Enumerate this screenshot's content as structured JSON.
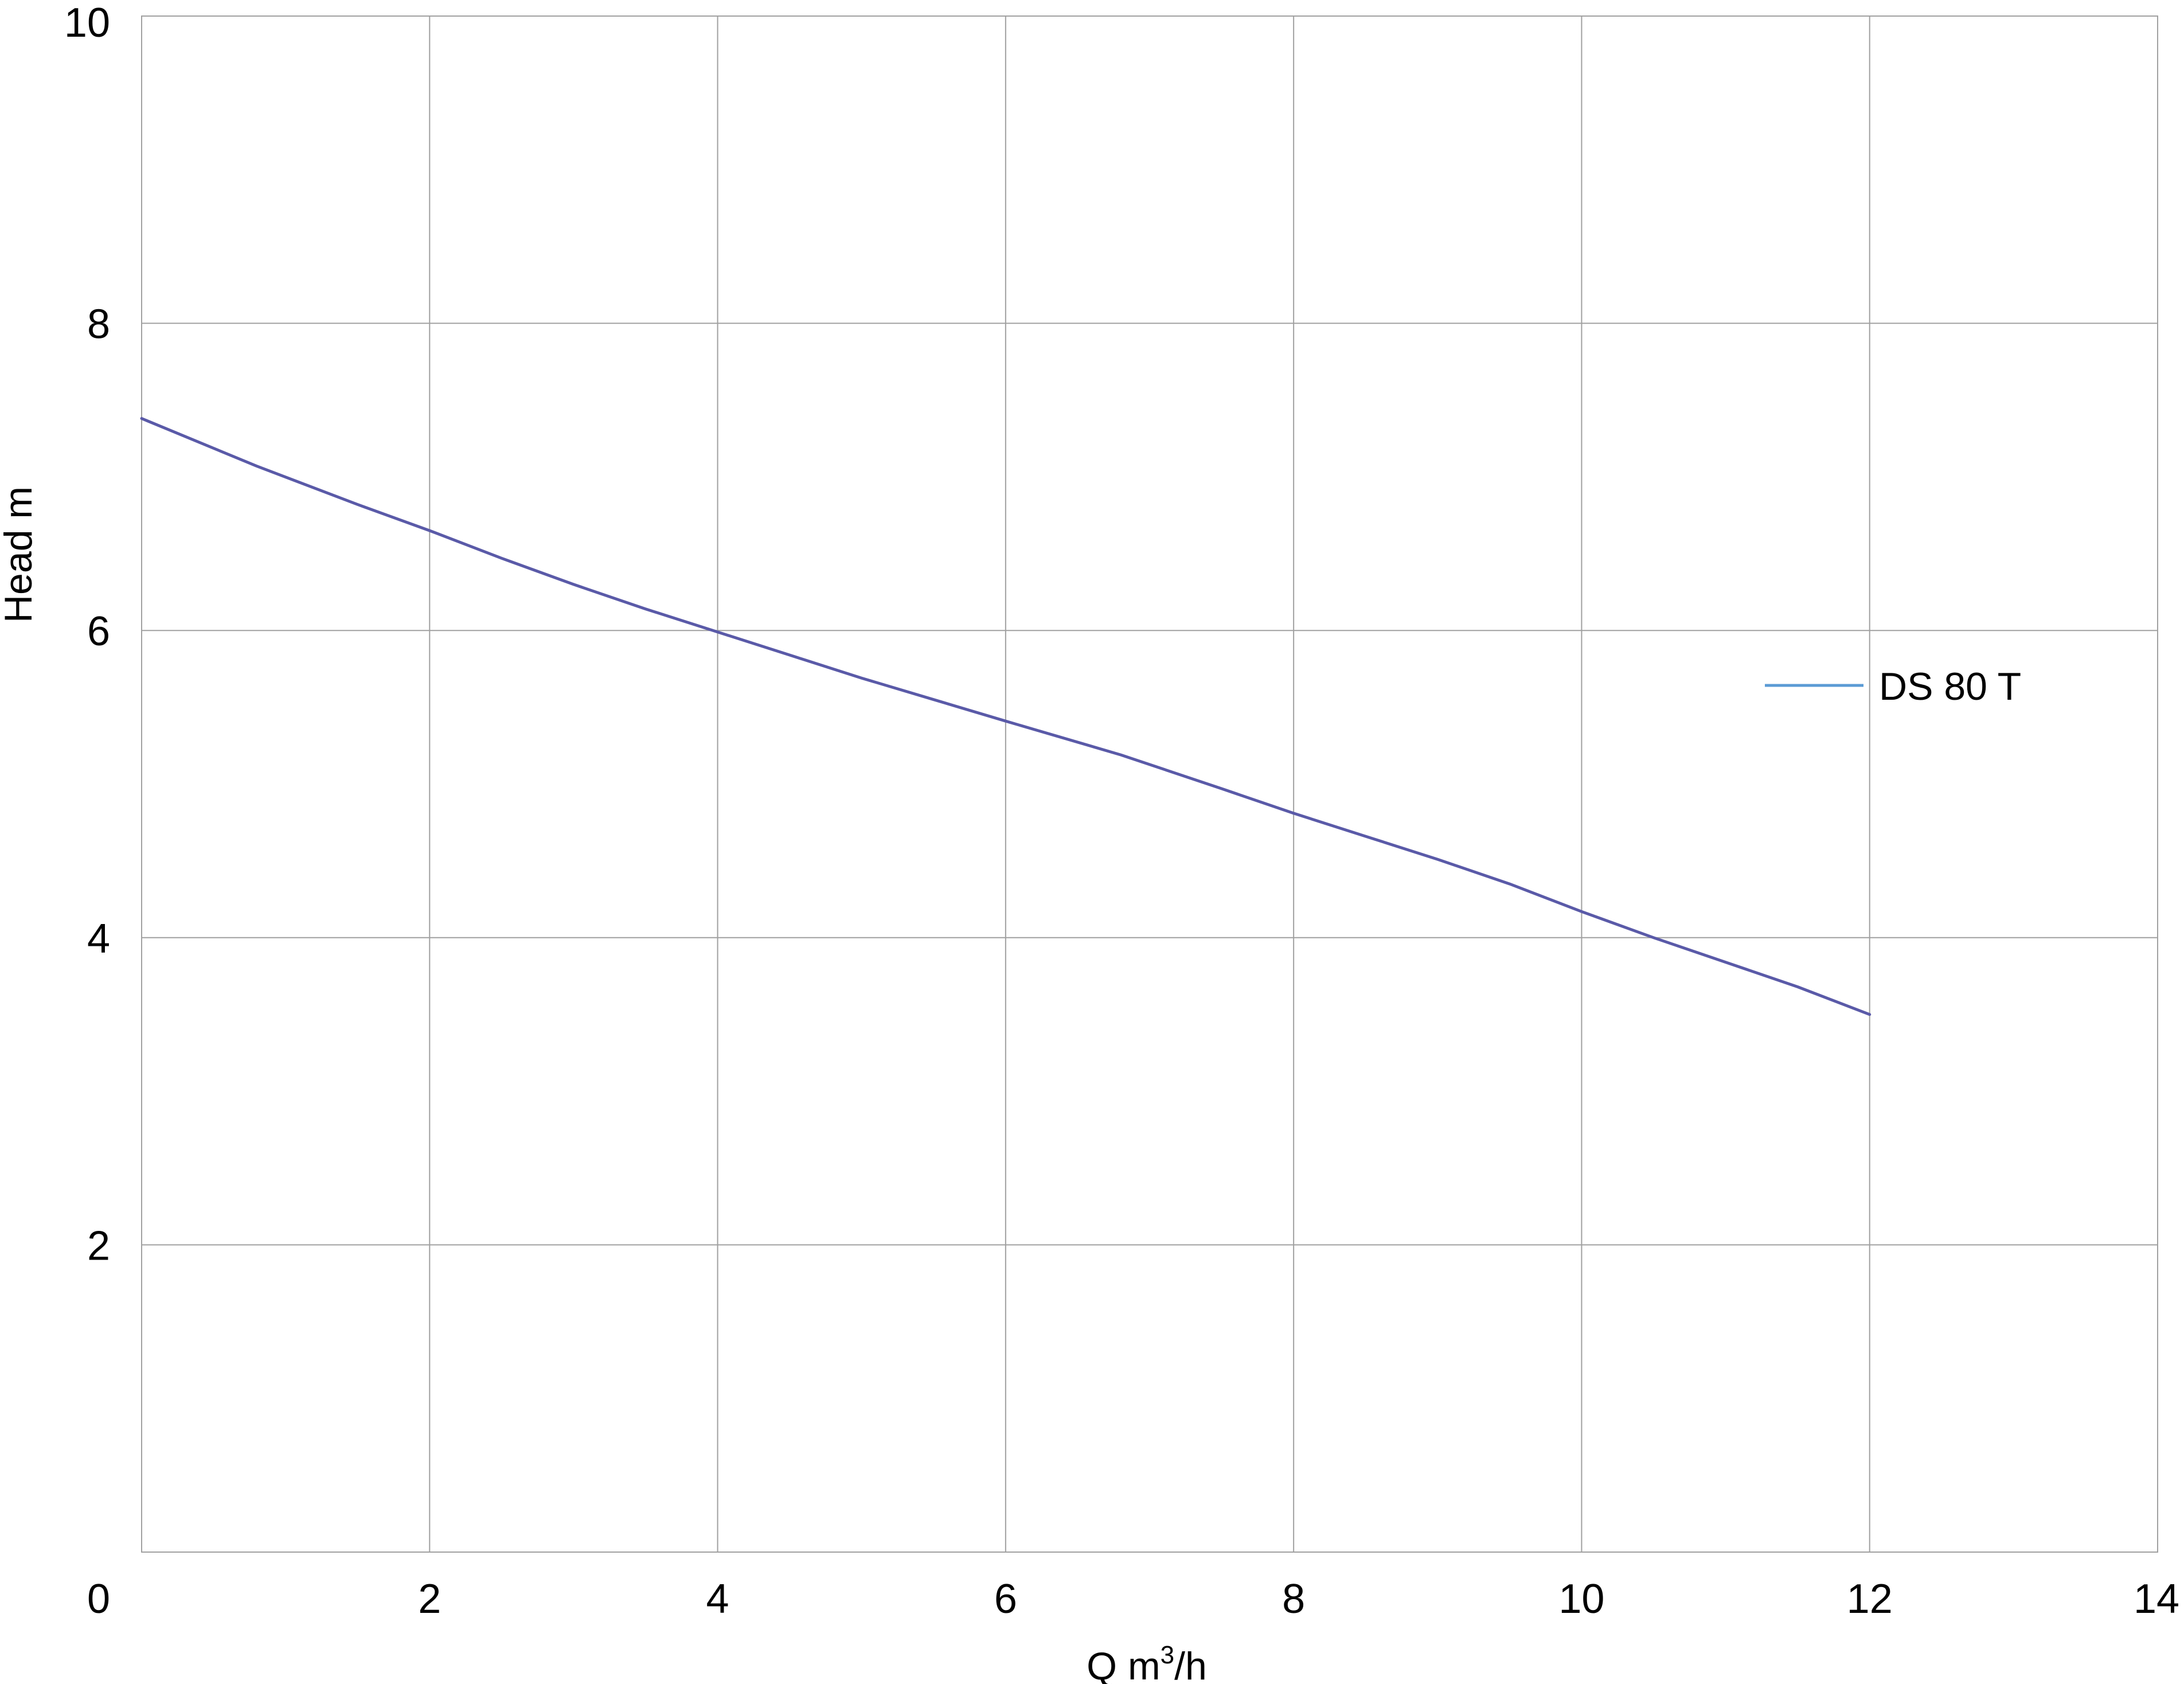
{
  "chart_data": {
    "type": "line",
    "title": "",
    "xlabel": "Q m",
    "xlabel_superscript": "3",
    "xlabel_suffix": "/h",
    "ylabel": "Head m",
    "xlim": [
      0,
      14
    ],
    "ylim": [
      0,
      10
    ],
    "x_ticks": [
      "0",
      "2",
      "4",
      "6",
      "8",
      "10",
      "12",
      "14"
    ],
    "y_ticks": [
      "2",
      "4",
      "6",
      "8",
      "10"
    ],
    "grid": true,
    "legend": {
      "placement": "right",
      "entries": [
        {
          "name": "DS 80 T",
          "color": "#5b9bd5"
        }
      ]
    },
    "series": [
      {
        "name": "DS 80 T",
        "color": "#5a5aa8",
        "legend_color": "#5b9bd5",
        "x": [
          0,
          0.8,
          1.5,
          2,
          2.5,
          3,
          3.5,
          4,
          4.5,
          5,
          5.5,
          6,
          6.8,
          7.5,
          8,
          8.5,
          9,
          9.5,
          10,
          10.5,
          11,
          11.5,
          12
        ],
        "y": [
          7.38,
          7.07,
          6.82,
          6.65,
          6.47,
          6.3,
          6.14,
          5.99,
          5.84,
          5.69,
          5.55,
          5.41,
          5.19,
          4.97,
          4.81,
          4.66,
          4.51,
          4.35,
          4.17,
          4.0,
          3.84,
          3.68,
          3.5
        ]
      }
    ]
  }
}
